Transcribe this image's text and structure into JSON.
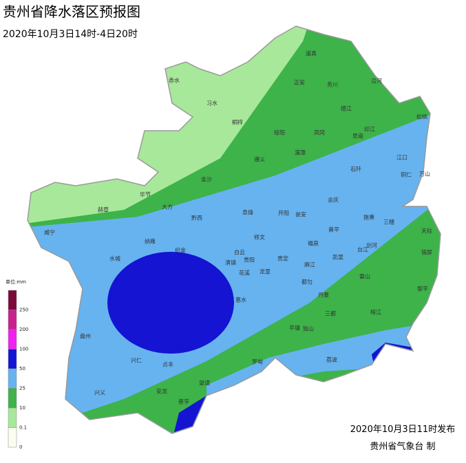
{
  "header": {
    "title": "贵州省降水落区预报图",
    "subtitle": "2020年10月3日14时-4日20时"
  },
  "legend": {
    "unit": "单位:mm",
    "labels": [
      "250",
      "200",
      "100",
      "50",
      "25",
      "10",
      "0.1",
      "0"
    ]
  },
  "places": [
    "道真",
    "正安",
    "务川",
    "沿河",
    "习水",
    "赤水",
    "桐梓",
    "绥阳",
    "凤冈",
    "德江",
    "印江",
    "思南",
    "松桃",
    "湄潭",
    "遵义",
    "石阡",
    "江口",
    "铜仁",
    "万山",
    "金沙",
    "毕节",
    "赫章",
    "大方",
    "黔西",
    "威宁",
    "息烽",
    "开阳",
    "余庆",
    "瓮安",
    "施秉",
    "三穗",
    "天柱",
    "纳雍",
    "织金",
    "修文",
    "黄平",
    "水城",
    "白云",
    "清镇",
    "贵阳",
    "福泉",
    "凯里",
    "台江",
    "剑河",
    "锦屏",
    "花溪",
    "龙里",
    "贵定",
    "麻江",
    "都匀",
    "雷山",
    "黎平",
    "惠水",
    "丹寨",
    "三都",
    "榕江",
    "盘州",
    "兴仁",
    "平塘",
    "独山",
    "荔波",
    "罗甸",
    "贞丰",
    "望谟",
    "兴义",
    "安龙",
    "册亨"
  ],
  "footer": {
    "issued": "2020年10月3日11时发布",
    "agency": "贵州省气象台  制"
  }
}
